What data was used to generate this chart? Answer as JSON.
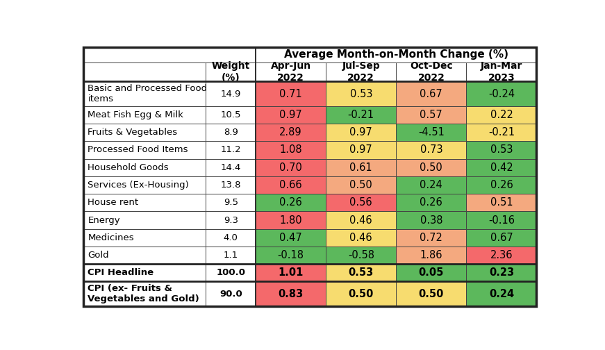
{
  "rows": [
    {
      "label": "Basic and Processed Food\nitems",
      "weight": "14.9",
      "values": [
        0.71,
        0.53,
        0.67,
        -0.24
      ],
      "bold": false
    },
    {
      "label": "Meat Fish Egg & Milk",
      "weight": "10.5",
      "values": [
        0.97,
        -0.21,
        0.57,
        0.22
      ],
      "bold": false
    },
    {
      "label": "Fruits & Vegetables",
      "weight": "8.9",
      "values": [
        2.89,
        0.97,
        -4.51,
        -0.21
      ],
      "bold": false
    },
    {
      "label": "Processed Food Items",
      "weight": "11.2",
      "values": [
        1.08,
        0.97,
        0.73,
        0.53
      ],
      "bold": false
    },
    {
      "label": "Household Goods",
      "weight": "14.4",
      "values": [
        0.7,
        0.61,
        0.5,
        0.42
      ],
      "bold": false
    },
    {
      "label": "Services (Ex-Housing)",
      "weight": "13.8",
      "values": [
        0.66,
        0.5,
        0.24,
        0.26
      ],
      "bold": false
    },
    {
      "label": "House rent",
      "weight": "9.5",
      "values": [
        0.26,
        0.56,
        0.26,
        0.51
      ],
      "bold": false
    },
    {
      "label": "Energy",
      "weight": "9.3",
      "values": [
        1.8,
        0.46,
        0.38,
        -0.16
      ],
      "bold": false
    },
    {
      "label": "Medicines",
      "weight": "4.0",
      "values": [
        0.47,
        0.46,
        0.72,
        0.67
      ],
      "bold": false
    },
    {
      "label": "Gold",
      "weight": "1.1",
      "values": [
        -0.18,
        -0.58,
        1.86,
        2.36
      ],
      "bold": false
    },
    {
      "label": "CPI Headline",
      "weight": "100.0",
      "values": [
        1.01,
        0.53,
        0.05,
        0.23
      ],
      "bold": true
    },
    {
      "label": "CPI (ex- Fruits &\nVegetables and Gold)",
      "weight": "90.0",
      "values": [
        0.83,
        0.5,
        0.5,
        0.24
      ],
      "bold": true
    }
  ],
  "header_span": "Average Month-on-Month Change (%)",
  "subheaders": [
    "Apr-Jun\n2022",
    "Jul-Sep\n2022",
    "Oct-Dec\n2022",
    "Jan-Mar\n2023"
  ],
  "cell_colors": [
    [
      "#F4696B",
      "#F7DC6F",
      "#F4A97F",
      "#5CB85C"
    ],
    [
      "#F4696B",
      "#5CB85C",
      "#F4A97F",
      "#F7DC6F"
    ],
    [
      "#F4696B",
      "#F7DC6F",
      "#5CB85C",
      "#F7DC6F"
    ],
    [
      "#F4696B",
      "#F7DC6F",
      "#F7DC6F",
      "#5CB85C"
    ],
    [
      "#F4696B",
      "#F4A97F",
      "#F4A97F",
      "#5CB85C"
    ],
    [
      "#F4696B",
      "#F4A97F",
      "#5CB85C",
      "#5CB85C"
    ],
    [
      "#5CB85C",
      "#F4696B",
      "#5CB85C",
      "#F4A97F"
    ],
    [
      "#F4696B",
      "#F7DC6F",
      "#5CB85C",
      "#5CB85C"
    ],
    [
      "#5CB85C",
      "#F7DC6F",
      "#F4A97F",
      "#5CB85C"
    ],
    [
      "#5CB85C",
      "#5CB85C",
      "#F4A97F",
      "#F4696B"
    ],
    [
      "#F4696B",
      "#F7DC6F",
      "#5CB85C",
      "#5CB85C"
    ],
    [
      "#F4696B",
      "#F7DC6F",
      "#F7DC6F",
      "#5CB85C"
    ]
  ],
  "outline_color": "#555555",
  "text_color": "#000000",
  "bg_white": "#ffffff"
}
